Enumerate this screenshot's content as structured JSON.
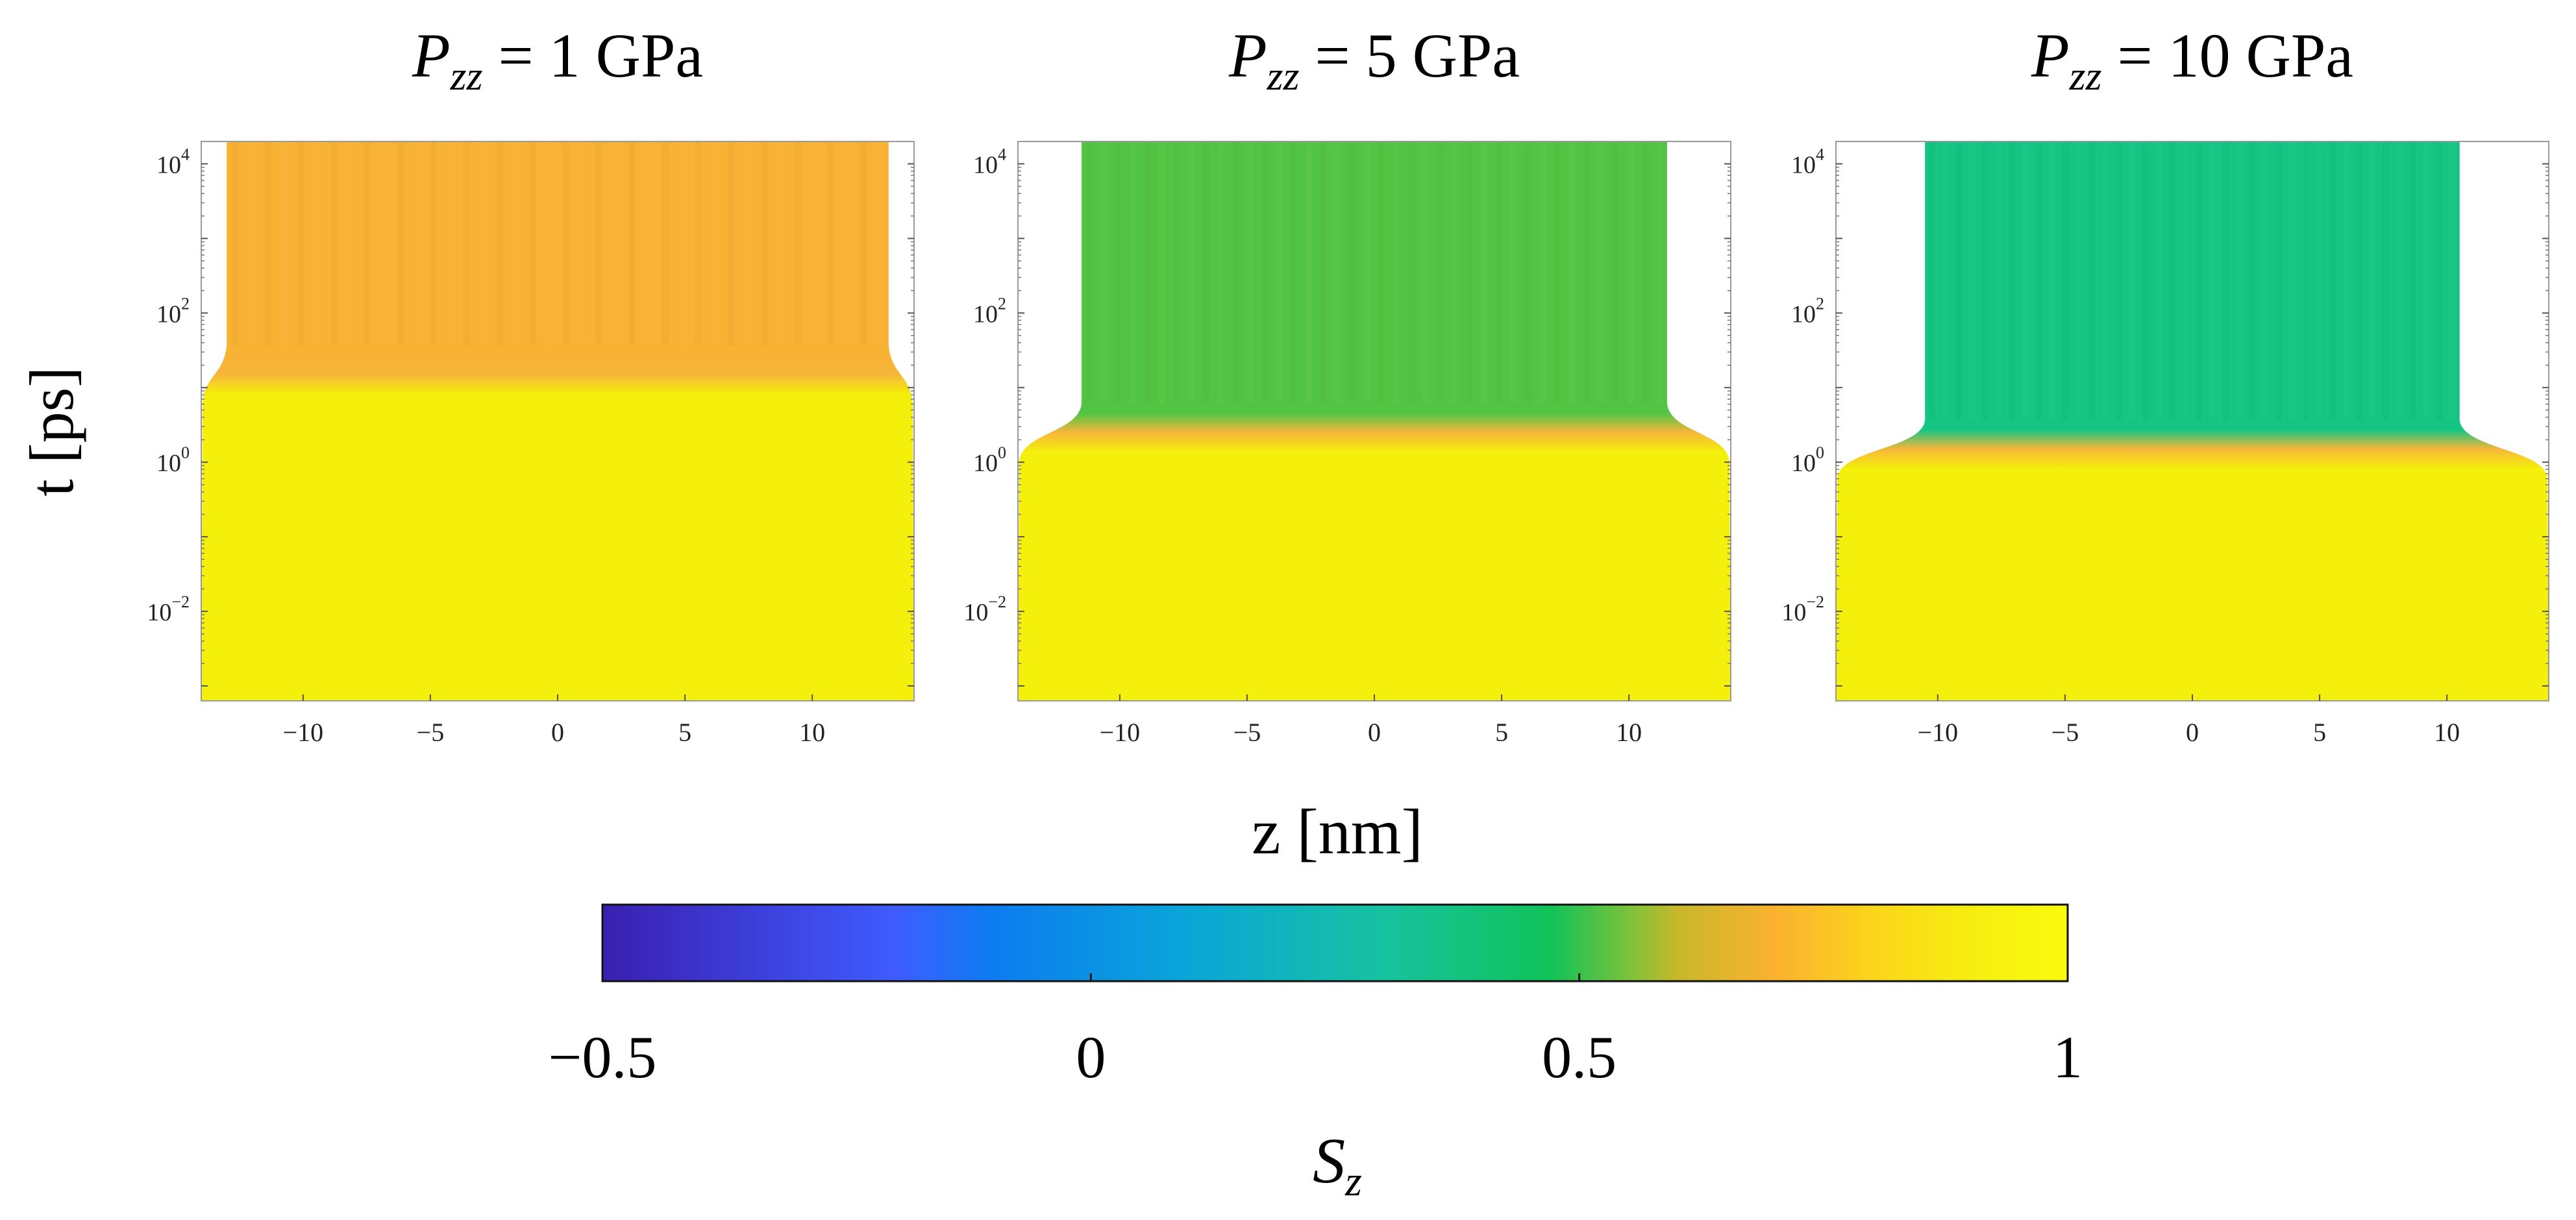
{
  "figure": {
    "ylabel": "t [ps]",
    "xlabel": "z [nm]"
  },
  "chart_data": [
    {
      "type": "heatmap",
      "title": "P_zz = 1 GPa",
      "title_var": "P",
      "title_sub": "zz",
      "title_rest": " = 1 GPa",
      "xlim": [
        -14,
        14
      ],
      "ylim_log10": [
        -3.2,
        4.3
      ],
      "xticks": [
        -10,
        -5,
        0,
        5,
        10
      ],
      "yticks": [
        {
          "exp": -2,
          "label": "10",
          "sup": "−2"
        },
        {
          "exp": 0,
          "label": "10",
          "sup": "0"
        },
        {
          "exp": 2,
          "label": "10",
          "sup": "2"
        },
        {
          "exp": 4,
          "label": "10",
          "sup": "4"
        }
      ],
      "transition_time_ps": 15,
      "initial_halfwidth_nm": 14,
      "final_halfwidth_nm": 13,
      "initial_Sz": 0.98,
      "final_Sz": 0.75,
      "color_before": "#f5ef0c",
      "color_after": "#f8b234"
    },
    {
      "type": "heatmap",
      "title": "P_zz = 5 GPa",
      "title_var": "P",
      "title_sub": "zz",
      "title_rest": " = 5 GPa",
      "xlim": [
        -14,
        14
      ],
      "ylim_log10": [
        -3.2,
        4.3
      ],
      "xticks": [
        -10,
        -5,
        0,
        5,
        10
      ],
      "yticks": [
        {
          "exp": -2,
          "label": "10",
          "sup": "−2"
        },
        {
          "exp": 0,
          "label": "10",
          "sup": "0"
        },
        {
          "exp": 2,
          "label": "10",
          "sup": "2"
        },
        {
          "exp": 4,
          "label": "10",
          "sup": "4"
        }
      ],
      "transition_time_ps": 2.5,
      "initial_halfwidth_nm": 14,
      "final_halfwidth_nm": 11.5,
      "initial_Sz": 0.98,
      "final_Sz": 0.5,
      "color_before": "#f5ef0c",
      "color_after": "#52c444"
    },
    {
      "type": "heatmap",
      "title": "P_zz = 10 GPa",
      "title_var": "P",
      "title_sub": "zz",
      "title_rest": " = 10 GPa",
      "xlim": [
        -14,
        14
      ],
      "ylim_log10": [
        -3.2,
        4.3
      ],
      "xticks": [
        -10,
        -5,
        0,
        5,
        10
      ],
      "yticks": [
        {
          "exp": -2,
          "label": "10",
          "sup": "−2"
        },
        {
          "exp": 0,
          "label": "10",
          "sup": "0"
        },
        {
          "exp": 2,
          "label": "10",
          "sup": "2"
        },
        {
          "exp": 4,
          "label": "10",
          "sup": "4"
        }
      ],
      "transition_time_ps": 1.5,
      "initial_halfwidth_nm": 14,
      "final_halfwidth_nm": 10.5,
      "initial_Sz": 0.98,
      "final_Sz": 0.4,
      "color_before": "#f5ef0c",
      "color_after": "#14c583"
    }
  ],
  "colorbar": {
    "label_var": "S",
    "label_sub": "z",
    "range": [
      -0.5,
      1
    ],
    "ticks": [
      {
        "value": -0.5,
        "label": "−0.5"
      },
      {
        "value": 0,
        "label": "0"
      },
      {
        "value": 0.5,
        "label": "0.5"
      },
      {
        "value": 1,
        "label": "1"
      }
    ],
    "stops": [
      {
        "value": -0.5,
        "color": "#3a1fb0"
      },
      {
        "value": -0.2,
        "color": "#3f5cff"
      },
      {
        "value": -0.1,
        "color": "#0c7cf0"
      },
      {
        "value": 0.1,
        "color": "#0aa6d8"
      },
      {
        "value": 0.3,
        "color": "#17c2a0"
      },
      {
        "value": 0.47,
        "color": "#10c259"
      },
      {
        "value": 0.55,
        "color": "#7ac23a"
      },
      {
        "value": 0.6,
        "color": "#c7b82a"
      },
      {
        "value": 0.7,
        "color": "#fbb130"
      },
      {
        "value": 0.8,
        "color": "#fbd51a"
      },
      {
        "value": 0.9,
        "color": "#f6ee10"
      },
      {
        "value": 1.0,
        "color": "#f9fa0d"
      }
    ]
  }
}
